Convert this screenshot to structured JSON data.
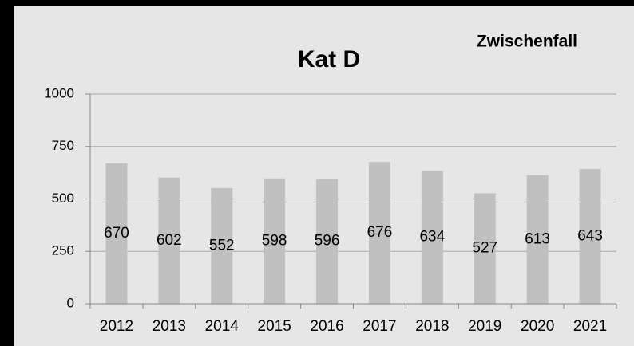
{
  "chart_data": {
    "type": "bar",
    "title": "Kat D",
    "subtitle": "Zwischenfall",
    "categories": [
      "2012",
      "2013",
      "2014",
      "2015",
      "2016",
      "2017",
      "2018",
      "2019",
      "2020",
      "2021"
    ],
    "values": [
      670,
      602,
      552,
      598,
      596,
      676,
      634,
      527,
      613,
      643
    ],
    "color": "#c0c0c0",
    "ylim": [
      0,
      1000
    ],
    "yticks": [
      0,
      250,
      500,
      750,
      1000
    ],
    "grid": true
  }
}
